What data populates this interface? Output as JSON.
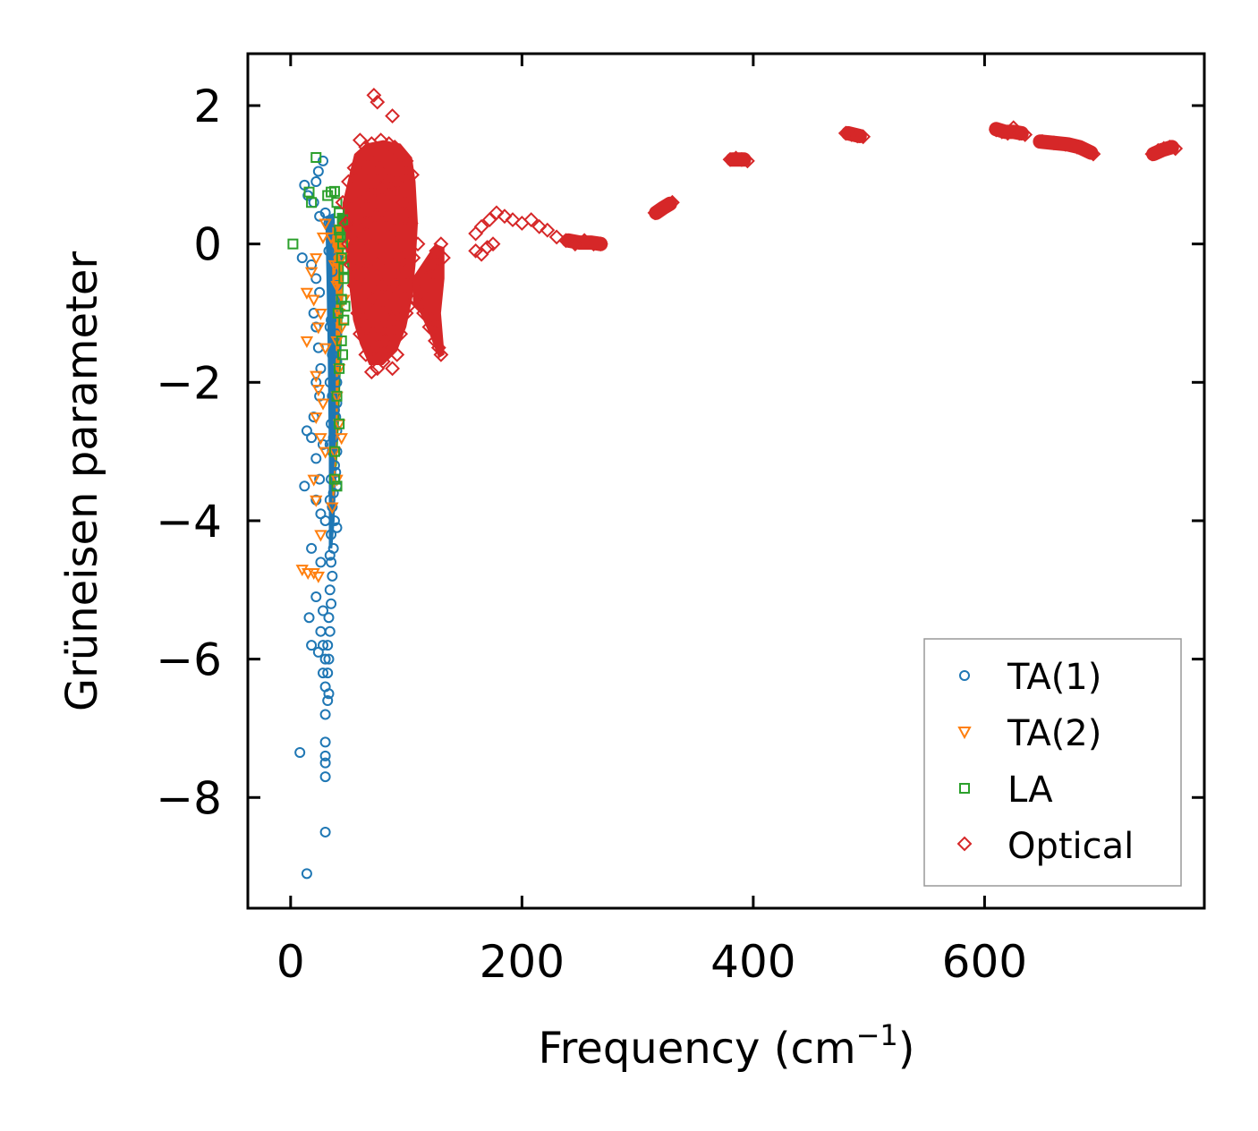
{
  "chart_data": {
    "type": "scatter",
    "title": "",
    "xlabel": "Frequency (cm",
    "xlabel_sup": "−1",
    "xlabel_suffix": ")",
    "ylabel": "Grüneisen parameter",
    "xlim": [
      -37,
      790
    ],
    "ylim": [
      -9.6,
      2.75
    ],
    "xticks": [
      0,
      200,
      400,
      600
    ],
    "xtick_labels": [
      "0",
      "200",
      "400",
      "600"
    ],
    "yticks": [
      2,
      0,
      -2,
      -4,
      -6,
      -8
    ],
    "ytick_labels": [
      "2",
      "0",
      "−2",
      "−4",
      "−6",
      "−8"
    ],
    "legend_position": "lower-right",
    "series": [
      {
        "name": "TA(1)",
        "marker": "circle",
        "color": "#1f77b4",
        "points": [
          [
            28,
            1.2
          ],
          [
            24,
            1.05
          ],
          [
            22,
            0.9
          ],
          [
            12,
            0.85
          ],
          [
            20,
            0.6
          ],
          [
            15,
            0.7
          ],
          [
            25,
            0.4
          ],
          [
            30,
            0.45
          ],
          [
            10,
            -0.2
          ],
          [
            18,
            -0.3
          ],
          [
            22,
            -0.5
          ],
          [
            25,
            -0.7
          ],
          [
            20,
            -1.0
          ],
          [
            22,
            -1.2
          ],
          [
            24,
            -1.5
          ],
          [
            26,
            -1.8
          ],
          [
            22,
            -2.0
          ],
          [
            25,
            -2.2
          ],
          [
            20,
            -2.5
          ],
          [
            14,
            -2.7
          ],
          [
            18,
            -2.8
          ],
          [
            28,
            -2.9
          ],
          [
            22,
            -3.1
          ],
          [
            25,
            -3.4
          ],
          [
            12,
            -3.5
          ],
          [
            22,
            -3.7
          ],
          [
            26,
            -3.9
          ],
          [
            30,
            -4.0
          ],
          [
            18,
            -4.4
          ],
          [
            26,
            -4.6
          ],
          [
            22,
            -5.1
          ],
          [
            28,
            -5.3
          ],
          [
            16,
            -5.4
          ],
          [
            26,
            -5.6
          ],
          [
            28,
            -5.8
          ],
          [
            18,
            -5.8
          ],
          [
            24,
            -5.9
          ],
          [
            30,
            -6.0
          ],
          [
            28,
            -6.2
          ],
          [
            30,
            -6.4
          ],
          [
            32,
            -6.6
          ],
          [
            30,
            -6.8
          ],
          [
            30,
            -7.2
          ],
          [
            8,
            -7.35
          ],
          [
            30,
            -7.4
          ],
          [
            30,
            -7.5
          ],
          [
            30,
            -7.7
          ],
          [
            30,
            -8.5
          ],
          [
            14,
            -9.1
          ],
          [
            33,
            0.3
          ],
          [
            35,
            0.2
          ],
          [
            33,
            -0.1
          ],
          [
            36,
            -0.4
          ],
          [
            38,
            -0.8
          ],
          [
            35,
            -1.1
          ],
          [
            38,
            -1.4
          ],
          [
            36,
            -1.6
          ],
          [
            38,
            -1.9
          ],
          [
            36,
            -2.2
          ],
          [
            38,
            -2.4
          ],
          [
            35,
            -2.6
          ],
          [
            37,
            -2.8
          ],
          [
            36,
            -3.0
          ],
          [
            38,
            -3.2
          ],
          [
            35,
            -3.4
          ],
          [
            37,
            -3.6
          ],
          [
            36,
            -3.8
          ],
          [
            38,
            -4.0
          ],
          [
            35,
            -4.2
          ],
          [
            37,
            -4.4
          ],
          [
            35,
            -4.6
          ],
          [
            36,
            -4.8
          ],
          [
            34,
            -5.0
          ],
          [
            35,
            -5.2
          ],
          [
            33,
            -5.4
          ],
          [
            34,
            -5.6
          ],
          [
            32,
            -5.8
          ],
          [
            33,
            -6.0
          ],
          [
            32,
            -6.2
          ],
          [
            33,
            -6.5
          ],
          [
            40,
            -0.2
          ],
          [
            40,
            -0.6
          ],
          [
            40,
            -1.0
          ],
          [
            40,
            -1.3
          ],
          [
            40,
            -1.7
          ],
          [
            40,
            -2.0
          ],
          [
            40,
            -2.3
          ],
          [
            40,
            -2.7
          ],
          [
            40,
            -3.0
          ],
          [
            40,
            -3.5
          ],
          [
            40,
            -4.1
          ],
          [
            39,
            -0.9
          ],
          [
            39,
            -1.5
          ],
          [
            39,
            -2.5
          ],
          [
            39,
            -3.3
          ],
          [
            34,
            -1.2
          ],
          [
            34,
            -2.0
          ],
          [
            34,
            -2.9
          ],
          [
            34,
            -3.7
          ],
          [
            34,
            -4.5
          ]
        ]
      },
      {
        "name": "TA(2)",
        "marker": "triangle-down",
        "color": "#ff7f0e",
        "points": [
          [
            30,
            0.3
          ],
          [
            28,
            0.1
          ],
          [
            22,
            -0.2
          ],
          [
            18,
            -0.4
          ],
          [
            14,
            -0.7
          ],
          [
            20,
            -0.8
          ],
          [
            26,
            -1.0
          ],
          [
            24,
            -1.2
          ],
          [
            14,
            -1.4
          ],
          [
            30,
            -1.5
          ],
          [
            22,
            -1.9
          ],
          [
            24,
            -2.1
          ],
          [
            28,
            -2.3
          ],
          [
            22,
            -2.5
          ],
          [
            26,
            -2.8
          ],
          [
            30,
            -3.0
          ],
          [
            20,
            -3.4
          ],
          [
            22,
            -3.7
          ],
          [
            26,
            -4.2
          ],
          [
            10,
            -4.7
          ],
          [
            15,
            -4.75
          ],
          [
            20,
            -4.75
          ],
          [
            24,
            -4.8
          ],
          [
            35,
            0.1
          ],
          [
            38,
            -0.3
          ],
          [
            40,
            -0.6
          ],
          [
            42,
            -1.0
          ],
          [
            40,
            -1.4
          ],
          [
            42,
            -1.8
          ],
          [
            40,
            -2.2
          ],
          [
            42,
            -2.6
          ],
          [
            38,
            -3.0
          ],
          [
            40,
            -3.4
          ],
          [
            36,
            -3.8
          ],
          [
            44,
            -2.8
          ],
          [
            44,
            -1.2
          ],
          [
            44,
            -0.2
          ],
          [
            46,
            0.0
          ],
          [
            46,
            -0.8
          ]
        ]
      },
      {
        "name": "LA",
        "marker": "square",
        "color": "#2ca02c",
        "points": [
          [
            22,
            1.25
          ],
          [
            16,
            0.75
          ],
          [
            18,
            0.6
          ],
          [
            2,
            0.0
          ],
          [
            35,
            0.75
          ],
          [
            38,
            0.76
          ],
          [
            32,
            0.7
          ],
          [
            40,
            0.6
          ],
          [
            42,
            0.45
          ],
          [
            45,
            0.35
          ],
          [
            42,
            0.2
          ],
          [
            45,
            0.0
          ],
          [
            44,
            -0.2
          ],
          [
            46,
            -0.5
          ],
          [
            44,
            -0.8
          ],
          [
            46,
            -1.1
          ],
          [
            44,
            -1.4
          ],
          [
            42,
            -1.8
          ],
          [
            40,
            -2.2
          ],
          [
            42,
            -2.6
          ],
          [
            38,
            -3.0
          ],
          [
            40,
            -3.5
          ],
          [
            38,
            -3.4
          ],
          [
            43,
            0.1
          ],
          [
            46,
            -0.35
          ],
          [
            45,
            -1.6
          ],
          [
            47,
            -0.9
          ],
          [
            41,
            -1.0
          ]
        ]
      },
      {
        "name": "Optical",
        "marker": "diamond",
        "color": "#d62728",
        "points": [
          [
            72,
            2.15
          ],
          [
            75,
            2.05
          ],
          [
            88,
            1.85
          ],
          [
            60,
            1.5
          ],
          [
            65,
            1.4
          ],
          [
            70,
            1.45
          ],
          [
            78,
            1.5
          ],
          [
            85,
            1.45
          ],
          [
            90,
            1.4
          ],
          [
            95,
            1.3
          ],
          [
            100,
            1.2
          ],
          [
            105,
            1.0
          ],
          [
            55,
            1.1
          ],
          [
            50,
            0.9
          ],
          [
            45,
            0.6
          ],
          [
            48,
            0.3
          ],
          [
            50,
            0.0
          ],
          [
            52,
            -0.3
          ],
          [
            55,
            -0.6
          ],
          [
            58,
            -1.0
          ],
          [
            60,
            -1.3
          ],
          [
            65,
            -1.6
          ],
          [
            70,
            -1.85
          ],
          [
            75,
            -1.8
          ],
          [
            80,
            -1.7
          ],
          [
            88,
            -1.8
          ],
          [
            92,
            -1.6
          ],
          [
            95,
            -1.3
          ],
          [
            100,
            -1.0
          ],
          [
            108,
            -0.8
          ],
          [
            112,
            -0.7
          ],
          [
            118,
            -0.5
          ],
          [
            122,
            -0.3
          ],
          [
            126,
            -0.1
          ],
          [
            130,
            0.0
          ],
          [
            132,
            -0.2
          ],
          [
            115,
            -1.0
          ],
          [
            120,
            -1.2
          ],
          [
            125,
            -1.4
          ],
          [
            130,
            -1.6
          ],
          [
            128,
            -1.5
          ],
          [
            122,
            -1.1
          ],
          [
            60,
            0.6
          ],
          [
            65,
            0.3
          ],
          [
            70,
            0.0
          ],
          [
            75,
            -0.3
          ],
          [
            80,
            -0.6
          ],
          [
            85,
            -0.9
          ],
          [
            90,
            0.2
          ],
          [
            95,
            -0.2
          ],
          [
            100,
            0.4
          ],
          [
            62,
            1.0
          ],
          [
            68,
            0.7
          ],
          [
            74,
            0.4
          ],
          [
            80,
            1.0
          ],
          [
            86,
            0.7
          ],
          [
            92,
            0.9
          ],
          [
            98,
            0.6
          ],
          [
            104,
            0.3
          ],
          [
            110,
            0.0
          ],
          [
            58,
            0.2
          ],
          [
            64,
            -0.4
          ],
          [
            70,
            -0.8
          ],
          [
            76,
            -1.2
          ],
          [
            82,
            -1.4
          ],
          [
            88,
            -1.1
          ],
          [
            94,
            -0.7
          ],
          [
            100,
            -0.4
          ],
          [
            106,
            -0.2
          ],
          [
            72,
            1.2
          ],
          [
            78,
            0.8
          ],
          [
            84,
            0.4
          ],
          [
            90,
            0.0
          ],
          [
            96,
            -0.5
          ],
          [
            102,
            -0.9
          ],
          [
            66,
            -1.2
          ],
          [
            73,
            -1.5
          ],
          [
            86,
            -1.5
          ],
          [
            160,
            0.15
          ],
          [
            165,
            0.25
          ],
          [
            172,
            0.35
          ],
          [
            178,
            0.45
          ],
          [
            185,
            0.4
          ],
          [
            192,
            0.35
          ],
          [
            200,
            0.3
          ],
          [
            208,
            0.35
          ],
          [
            215,
            0.25
          ],
          [
            222,
            0.2
          ],
          [
            230,
            0.1
          ],
          [
            238,
            0.05
          ],
          [
            246,
            0.0
          ],
          [
            254,
            0.05
          ],
          [
            262,
            0.0
          ],
          [
            268,
            0.0
          ],
          [
            160,
            -0.1
          ],
          [
            165,
            -0.15
          ],
          [
            170,
            -0.05
          ],
          [
            175,
            0.0
          ],
          [
            315,
            0.45
          ],
          [
            320,
            0.5
          ],
          [
            325,
            0.55
          ],
          [
            330,
            0.6
          ],
          [
            380,
            1.22
          ],
          [
            385,
            1.24
          ],
          [
            390,
            1.22
          ],
          [
            395,
            1.2
          ],
          [
            480,
            1.6
          ],
          [
            485,
            1.58
          ],
          [
            490,
            1.56
          ],
          [
            495,
            1.55
          ],
          [
            610,
            1.65
          ],
          [
            615,
            1.62
          ],
          [
            620,
            1.6
          ],
          [
            625,
            1.68
          ],
          [
            630,
            1.6
          ],
          [
            635,
            1.58
          ],
          [
            650,
            1.48
          ],
          [
            660,
            1.46
          ],
          [
            670,
            1.44
          ],
          [
            680,
            1.4
          ],
          [
            688,
            1.35
          ],
          [
            694,
            1.3
          ],
          [
            745,
            1.3
          ],
          [
            750,
            1.35
          ],
          [
            755,
            1.38
          ],
          [
            760,
            1.4
          ],
          [
            765,
            1.38
          ]
        ]
      }
    ]
  }
}
